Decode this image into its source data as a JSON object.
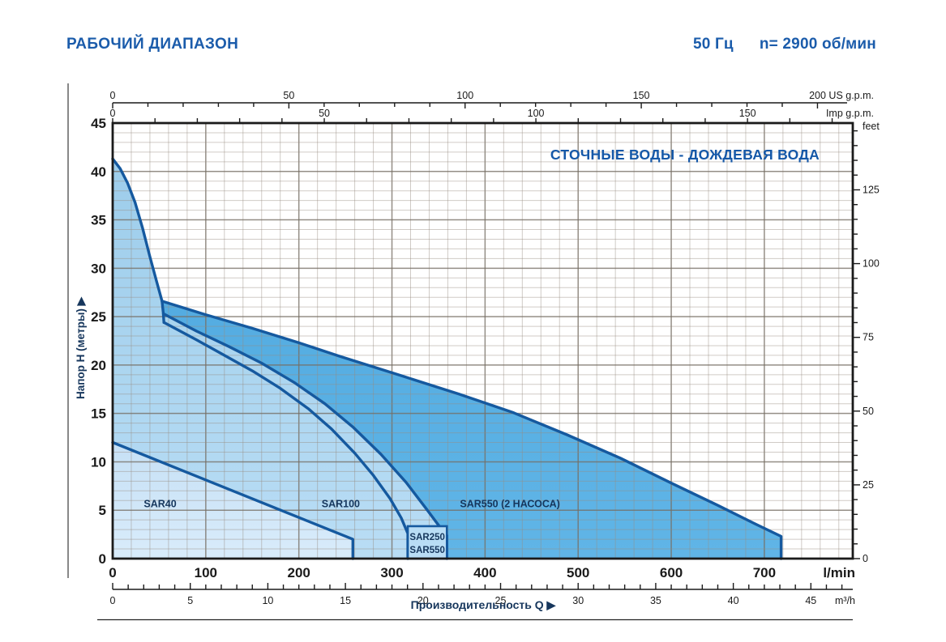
{
  "header": {
    "title": "РАБОЧИЙ ДИАПАЗОН",
    "frequency": "50 Гц",
    "speed": "n= 2900 об/мин"
  },
  "chart_data": {
    "type": "area",
    "title_inside": "СТОЧНЫЕ ВОДЫ - ДОЖДЕВАЯ ВОДА",
    "xlabel": "Производительность Q",
    "ylabel": "Напор H (метры)",
    "arrow_glyph": "▶",
    "q_max": 795,
    "h_max": 45,
    "x_axis_lmin": {
      "unit": "l/min",
      "ticks": [
        0,
        100,
        200,
        300,
        400,
        500,
        600,
        700
      ]
    },
    "x_axis_m3h": {
      "unit": "m³/h",
      "ticks": [
        0,
        5,
        10,
        15,
        20,
        25,
        30,
        35,
        40,
        45
      ],
      "lmin_per_unit": 16.6667,
      "minor_step": 1
    },
    "x_axis_usgpm": {
      "unit": "US g.p.m.",
      "ticks": [
        0,
        50,
        100,
        150
      ],
      "last_tick_label": "200 US g.p.m.",
      "lmin_per_unit": 3.78541,
      "minor_step": 10,
      "max": 200
    },
    "x_axis_impgpm": {
      "unit": "Imp g.p.m.",
      "ticks": [
        0,
        50,
        100,
        150
      ],
      "lmin_per_unit": 4.54609,
      "minor_step": 10,
      "max": 175
    },
    "y_axis_m": {
      "ticks": [
        0,
        5,
        10,
        15,
        20,
        25,
        30,
        35,
        40,
        45
      ]
    },
    "y_axis_feet": {
      "unit": "feet",
      "ticks": [
        0,
        25,
        50,
        75,
        100,
        125
      ],
      "m_per_unit": 0.3048,
      "minor_step": 5,
      "max": 145
    },
    "series": [
      {
        "name": "SAR550 max-head curve",
        "points": [
          [
            0,
            41.3
          ],
          [
            8,
            40.3
          ],
          [
            16,
            38.8
          ],
          [
            24,
            36.8
          ],
          [
            32,
            34.2
          ],
          [
            40,
            31.2
          ],
          [
            47,
            28.7
          ],
          [
            53,
            26.6
          ],
          [
            54.3,
            25.4
          ],
          [
            55,
            24.4
          ]
        ]
      },
      {
        "name": "SAR250 curve",
        "points": [
          [
            55,
            24.4
          ],
          [
            90,
            22.6
          ],
          [
            120,
            21.0
          ],
          [
            150,
            19.4
          ],
          [
            180,
            17.6
          ],
          [
            210,
            15.5
          ],
          [
            235,
            13.4
          ],
          [
            260,
            10.9
          ],
          [
            280,
            8.6
          ],
          [
            298,
            6.2
          ],
          [
            310,
            4.2
          ],
          [
            317,
            2.6
          ]
        ],
        "drop_q": 317
      },
      {
        "name": "SAR550 curve",
        "points": [
          [
            54.5,
            25.3
          ],
          [
            90,
            23.5
          ],
          [
            125,
            21.9
          ],
          [
            160,
            20.2
          ],
          [
            195,
            18.2
          ],
          [
            228,
            16.0
          ],
          [
            258,
            13.6
          ],
          [
            288,
            10.8
          ],
          [
            315,
            7.9
          ],
          [
            338,
            5.0
          ],
          [
            352,
            3.2
          ],
          [
            359,
            2.4
          ]
        ],
        "drop_q": 359
      },
      {
        "name": "SAR550 (2 НАСОСА) envelope",
        "points": [
          [
            53,
            26.6
          ],
          [
            100,
            25.2
          ],
          [
            150,
            23.8
          ],
          [
            200,
            22.3
          ],
          [
            244,
            20.9
          ],
          [
            310,
            18.9
          ],
          [
            372,
            17.0
          ],
          [
            430,
            15.1
          ],
          [
            488,
            12.8
          ],
          [
            545,
            10.4
          ],
          [
            600,
            7.8
          ],
          [
            650,
            5.5
          ],
          [
            690,
            3.6
          ],
          [
            718,
            2.3
          ]
        ],
        "drop_q": 718
      },
      {
        "name": "SAR40 envelope",
        "points": [
          [
            0,
            12
          ],
          [
            258,
            2
          ]
        ],
        "drop_q": 258
      }
    ],
    "region_labels": [
      {
        "text": "SAR40",
        "q": 51,
        "h": 5.3,
        "anchor": "middle"
      },
      {
        "text": "SAR100",
        "q": 245,
        "h": 5.3,
        "anchor": "middle"
      },
      {
        "text": "SAR550 (2 НАСОСА)",
        "q": 373,
        "h": 5.3,
        "anchor": "start"
      }
    ],
    "band_box_labels": [
      "SAR250",
      "SAR550"
    ],
    "grid": {
      "v_minor_lmin": 20,
      "v_major_lmin": 100,
      "h_minor_m": 1,
      "h_major_m": 5
    },
    "colors": {
      "title_blue": "#1558a8",
      "navy": "#16365c",
      "curve": "#15599f",
      "fill_light_top": "#9dcdeb",
      "fill_light_bottom": "#b9ddf5",
      "fill_lighter_top": "#c6e0f5",
      "fill_lighter_bottom": "#d9ecfb",
      "fill_medium_top": "#54ace1",
      "fill_medium_bottom": "#60b5e7",
      "grid_minor": "rgba(150,140,128,0.45)",
      "grid_major": "rgba(118,110,100,0.78)",
      "axis_black": "#1a1a1a"
    }
  }
}
